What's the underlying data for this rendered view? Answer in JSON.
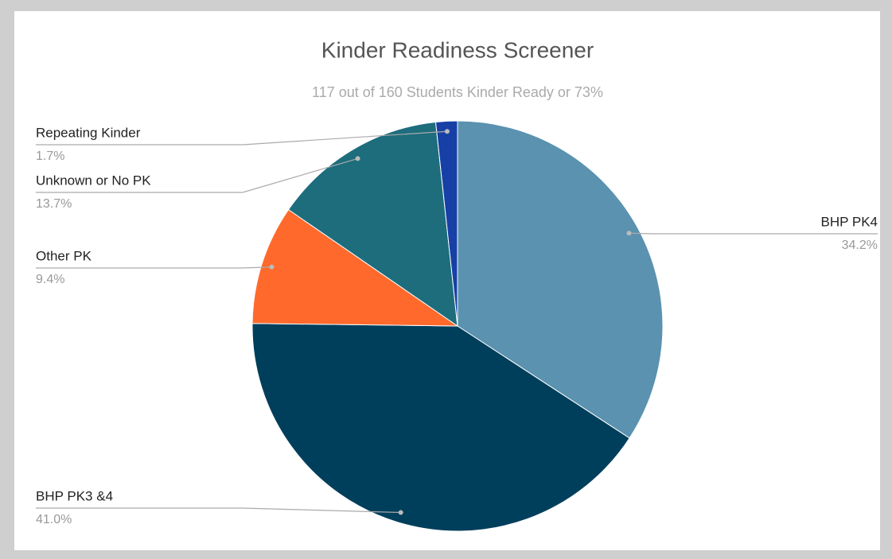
{
  "chart_data": {
    "type": "pie",
    "title": "Kinder Readiness Screener",
    "subtitle": "117 out of 160 Students Kinder Ready or 73%",
    "categories": [
      "BHP PK4",
      "BHP PK3 &4",
      "Other PK",
      "Unknown or No PK",
      "Repeating Kinder"
    ],
    "values": [
      34.2,
      41.0,
      9.4,
      13.7,
      1.7
    ],
    "value_labels": [
      "34.2%",
      "41.0%",
      "9.4%",
      "13.7%",
      "1.7%"
    ],
    "colors": [
      "#5a92b0",
      "#003f5c",
      "#ff6a2c",
      "#1d6d7d",
      "#1740a6"
    ]
  }
}
